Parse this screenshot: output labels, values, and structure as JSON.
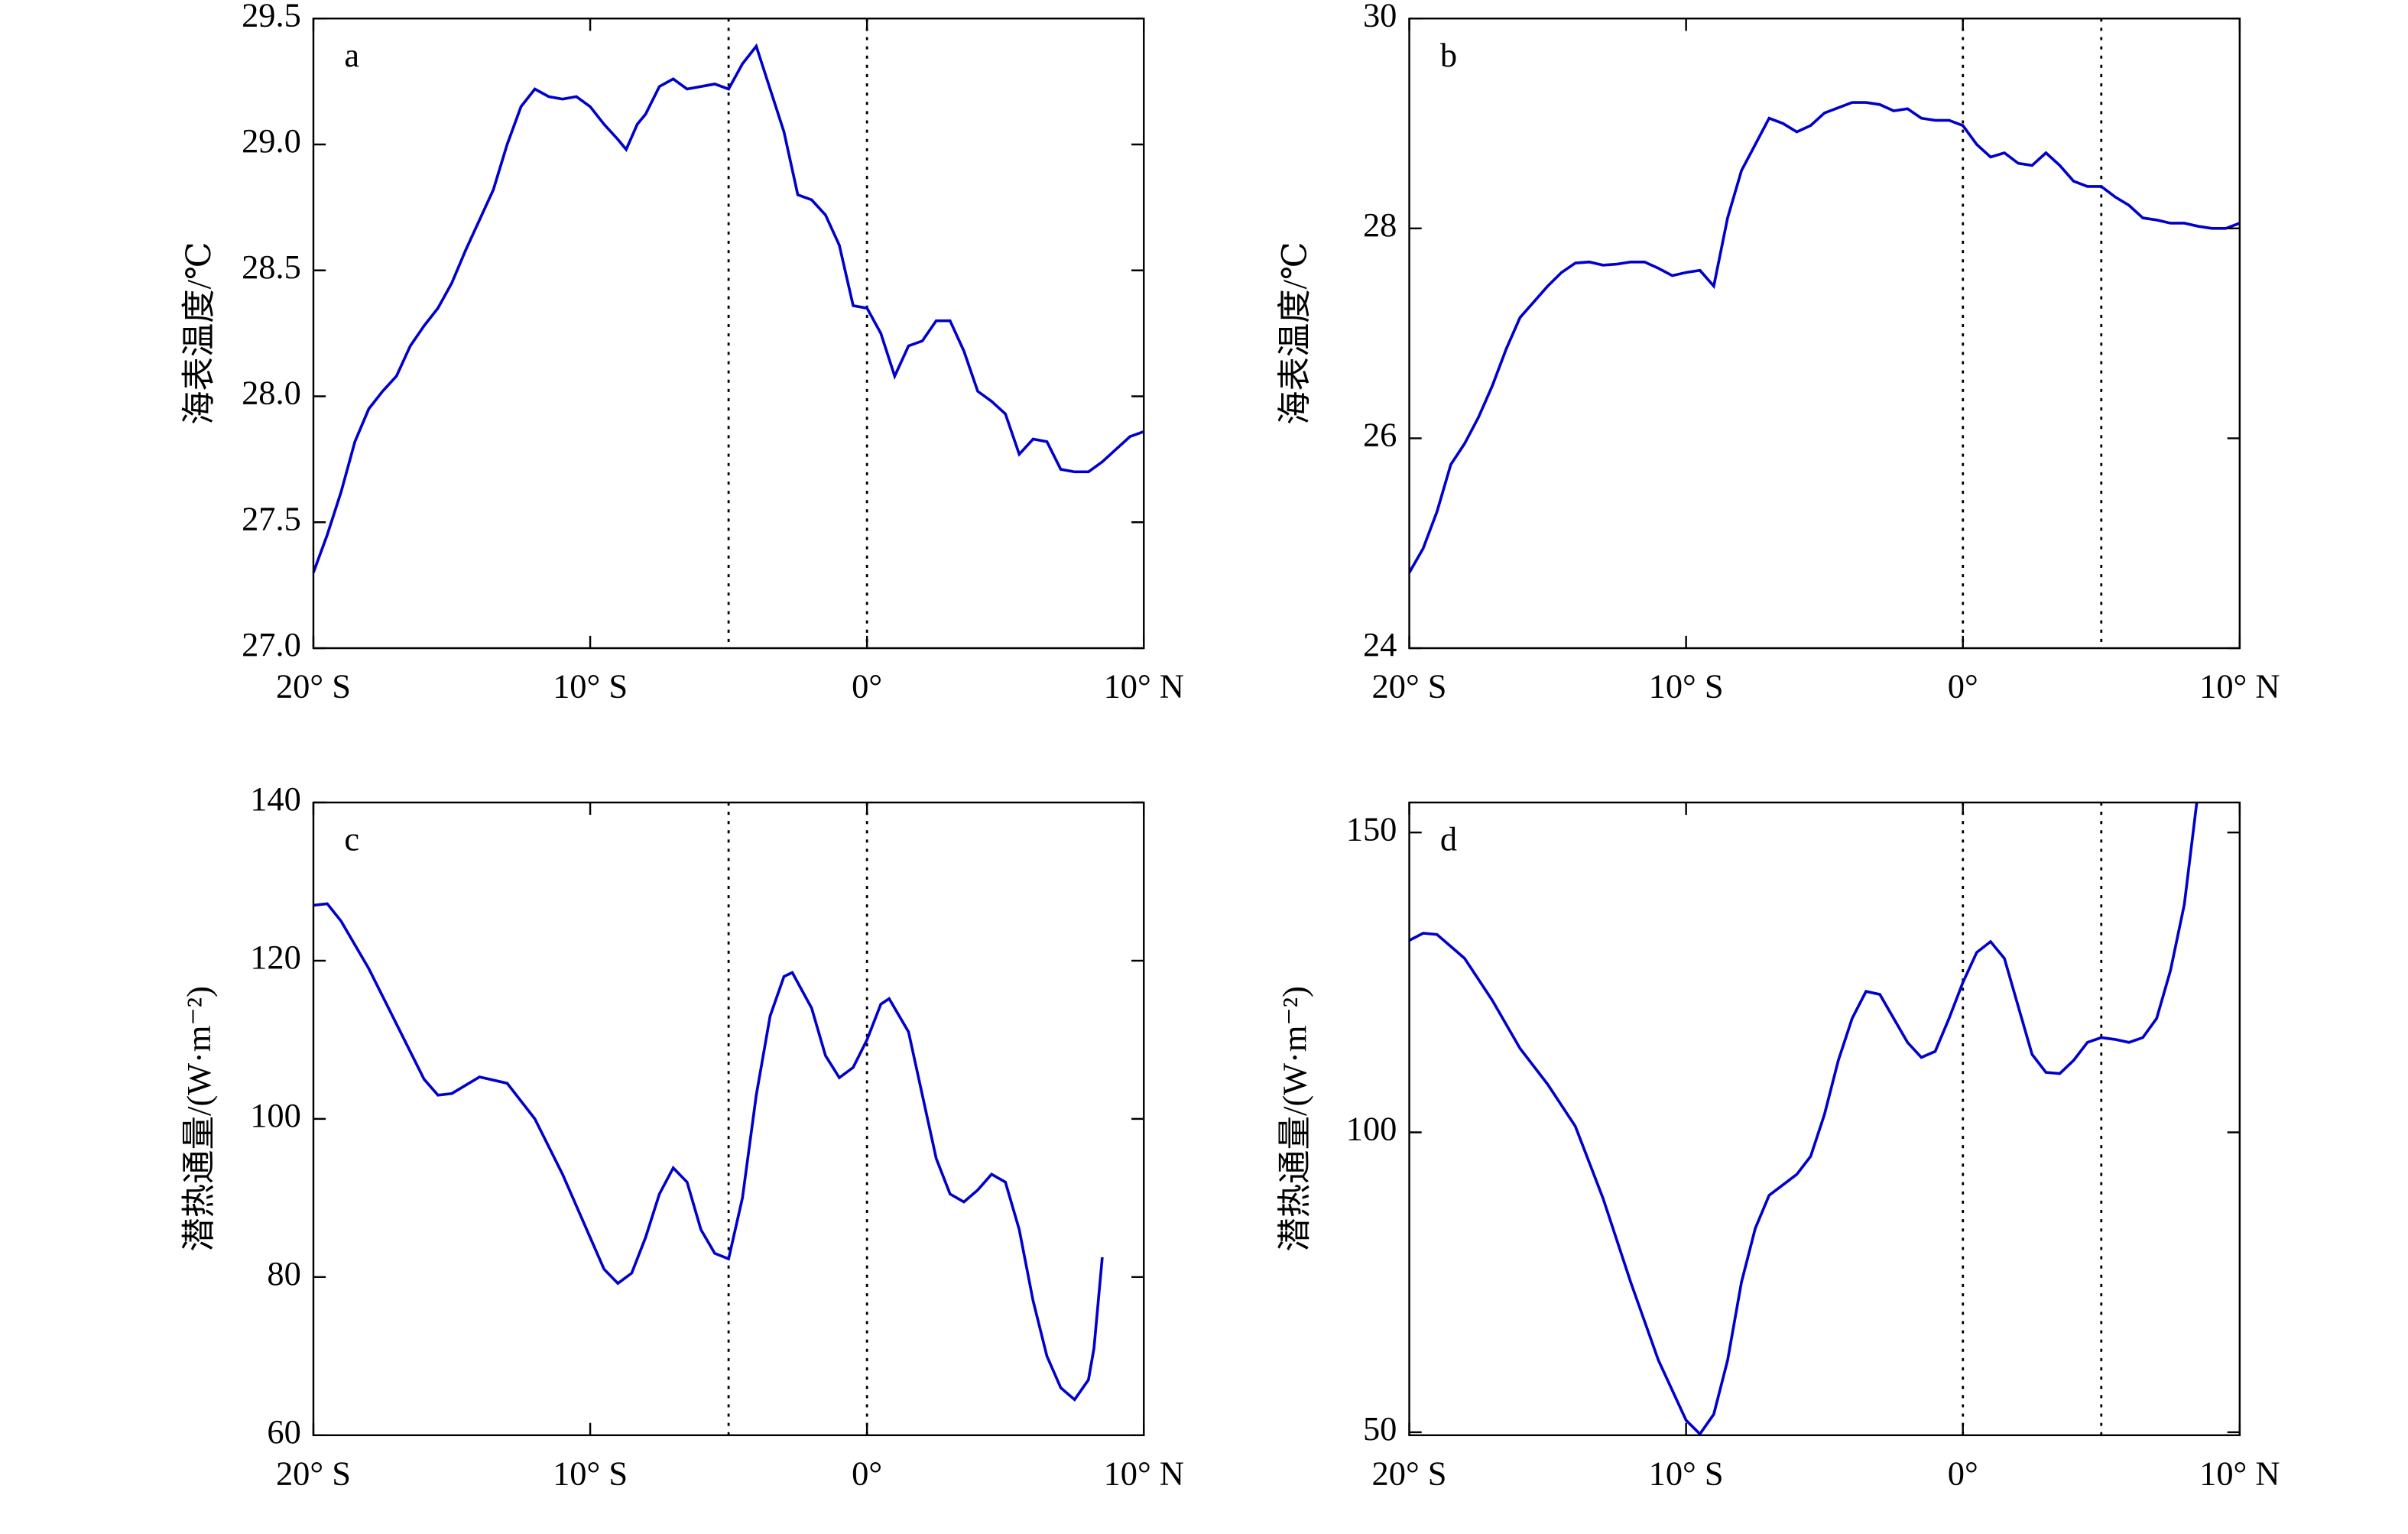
{
  "chart_data": [
    {
      "type": "line",
      "annotation": "a",
      "ylabel": "海表温度/℃",
      "color": "#0000cc",
      "xlim": [
        -20,
        10
      ],
      "xticks": [
        {
          "value": -20,
          "label": "20° S"
        },
        {
          "value": -10,
          "label": "10° S"
        },
        {
          "value": 0,
          "label": "0°"
        },
        {
          "value": 10,
          "label": "10° N"
        }
      ],
      "ylim": [
        27,
        29.5
      ],
      "yticks": [
        {
          "value": 27,
          "label": "27.0"
        },
        27.5,
        {
          "value": 28,
          "label": "28.0"
        },
        28.5,
        {
          "value": 29,
          "label": "29.0"
        },
        29.5
      ],
      "vlines": [
        -5,
        0
      ],
      "x": [
        -20,
        -19.5,
        -19,
        -18.5,
        -18,
        -17.5,
        -17,
        -16.5,
        -16,
        -15.5,
        -15,
        -14.5,
        -14,
        -13.5,
        -13,
        -12.5,
        -12,
        -11.5,
        -11,
        -10.5,
        -10,
        -9.5,
        -9,
        -8.7,
        -8.3,
        -8,
        -7.5,
        -7,
        -6.5,
        -6,
        -5.5,
        -5,
        -4.5,
        -4,
        -3.5,
        -3,
        -2.5,
        -2,
        -1.5,
        -1,
        -0.5,
        0,
        0.5,
        1,
        1.5,
        2,
        2.5,
        3,
        3.5,
        4,
        4.5,
        5,
        5.5,
        6,
        6.5,
        7,
        7.5,
        8,
        8.5,
        9,
        9.5,
        10
      ],
      "values": [
        27.3,
        27.45,
        27.62,
        27.82,
        27.95,
        28.02,
        28.08,
        28.2,
        28.28,
        28.35,
        28.45,
        28.58,
        28.7,
        28.82,
        29.0,
        29.15,
        29.22,
        29.19,
        29.18,
        29.19,
        29.15,
        29.08,
        29.02,
        28.98,
        29.08,
        29.12,
        29.23,
        29.26,
        29.22,
        29.23,
        29.24,
        29.22,
        29.32,
        29.39,
        29.22,
        29.05,
        28.8,
        28.78,
        28.72,
        28.6,
        28.36,
        28.35,
        28.25,
        28.08,
        28.2,
        28.22,
        28.3,
        28.3,
        28.18,
        28.02,
        27.98,
        27.93,
        27.77,
        27.83,
        27.82,
        27.71,
        27.7,
        27.7,
        27.74,
        27.79,
        27.84,
        27.86
      ]
    },
    {
      "type": "line",
      "annotation": "b",
      "ylabel": "海表温度/℃",
      "color": "#0000cc",
      "xlim": [
        -20,
        10
      ],
      "xticks": [
        {
          "value": -20,
          "label": "20° S"
        },
        {
          "value": -10,
          "label": "10° S"
        },
        {
          "value": 0,
          "label": "0°"
        },
        {
          "value": 10,
          "label": "10° N"
        }
      ],
      "ylim": [
        24,
        30
      ],
      "yticks": [
        24,
        26,
        28,
        30
      ],
      "vlines": [
        0,
        5
      ],
      "x": [
        -20,
        -19.5,
        -19,
        -18.5,
        -18,
        -17.5,
        -17,
        -16.5,
        -16,
        -15.5,
        -15,
        -14.5,
        -14,
        -13.5,
        -13,
        -12.5,
        -12,
        -11.5,
        -11,
        -10.5,
        -10,
        -9.5,
        -9,
        -8.5,
        -8,
        -7.5,
        -7,
        -6.5,
        -6,
        -5.5,
        -5,
        -4.5,
        -4,
        -3.5,
        -3,
        -2.5,
        -2,
        -1.5,
        -1,
        -0.5,
        0,
        0.5,
        1,
        1.5,
        2,
        2.5,
        3,
        3.5,
        4,
        4.5,
        5,
        5.5,
        6,
        6.5,
        7,
        7.5,
        8,
        8.5,
        9,
        9.5,
        10
      ],
      "values": [
        24.72,
        24.95,
        25.3,
        25.75,
        25.95,
        26.2,
        26.5,
        26.85,
        27.15,
        27.3,
        27.45,
        27.58,
        27.67,
        27.68,
        27.65,
        27.66,
        27.68,
        27.68,
        27.62,
        27.55,
        27.58,
        27.6,
        27.45,
        28.1,
        28.55,
        28.8,
        29.05,
        29.0,
        28.92,
        28.98,
        29.1,
        29.15,
        29.2,
        29.2,
        29.18,
        29.12,
        29.14,
        29.05,
        29.03,
        29.03,
        28.98,
        28.8,
        28.68,
        28.72,
        28.62,
        28.6,
        28.72,
        28.6,
        28.45,
        28.4,
        28.4,
        28.3,
        28.22,
        28.1,
        28.08,
        28.05,
        28.05,
        28.02,
        28.0,
        28.0,
        28.05
      ]
    },
    {
      "type": "line",
      "annotation": "c",
      "ylabel": "潜热通量/(W·m⁻²)",
      "color": "#0000cc",
      "xlim": [
        -20,
        10
      ],
      "xticks": [
        {
          "value": -20,
          "label": "20° S"
        },
        {
          "value": -10,
          "label": "10° S"
        },
        {
          "value": 0,
          "label": "0°"
        },
        {
          "value": 10,
          "label": "10° N"
        }
      ],
      "ylim": [
        60,
        140
      ],
      "yticks": [
        60,
        80,
        100,
        120,
        140
      ],
      "vlines": [
        -5,
        0
      ],
      "x": [
        -20,
        -19.5,
        -19,
        -18,
        -17,
        -16,
        -15.5,
        -15,
        -14,
        -13,
        -12,
        -11,
        -10,
        -9.5,
        -9,
        -8.5,
        -8,
        -7.5,
        -7,
        -6.5,
        -6,
        -5.5,
        -5,
        -4.5,
        -4,
        -3.5,
        -3,
        -2.7,
        -2,
        -1.5,
        -1,
        -0.5,
        0,
        0.5,
        0.8,
        1.5,
        2,
        2.5,
        3,
        3.5,
        4,
        4.5,
        5,
        5.5,
        6,
        6.5,
        7,
        7.5,
        8,
        8.2,
        8.5
      ],
      "values": [
        127,
        127.2,
        125,
        119,
        112,
        105,
        103,
        103.2,
        105.3,
        104.5,
        100,
        93,
        85,
        81,
        79.2,
        80.5,
        85,
        90.5,
        93.8,
        92,
        86,
        83,
        82.3,
        90,
        103,
        113,
        118,
        118.5,
        114,
        108,
        105.2,
        106.5,
        110,
        114.5,
        115.2,
        111,
        103,
        95,
        90.5,
        89.5,
        91,
        93,
        92,
        86,
        77,
        70,
        66,
        64.5,
        67,
        71,
        82.5
      ]
    },
    {
      "type": "line",
      "annotation": "d",
      "ylabel": "潜热通量/(W·m⁻²)",
      "color": "#0000cc",
      "xlim": [
        -20,
        10
      ],
      "xticks": [
        {
          "value": -20,
          "label": "20° S"
        },
        {
          "value": -10,
          "label": "10° S"
        },
        {
          "value": 0,
          "label": "0°"
        },
        {
          "value": 10,
          "label": "10° N"
        }
      ],
      "ylim": [
        49.5,
        155
      ],
      "yticks": [
        50,
        100,
        150
      ],
      "vlines": [
        0,
        5
      ],
      "x": [
        -20,
        -19.5,
        -19,
        -18,
        -17,
        -16,
        -15,
        -14,
        -13,
        -12,
        -11,
        -10,
        -9.5,
        -9,
        -8.5,
        -8,
        -7.5,
        -7,
        -6,
        -5.5,
        -5,
        -4.5,
        -4,
        -3.5,
        -3,
        -2.5,
        -2,
        -1.5,
        -1,
        -0.5,
        0,
        0.5,
        1,
        1.5,
        2,
        2.5,
        3,
        3.5,
        4,
        4.5,
        5,
        5.5,
        6,
        6.5,
        7,
        7.5,
        8,
        8.45
      ],
      "values": [
        132,
        133.2,
        133,
        129,
        122,
        114,
        108,
        101,
        89,
        75,
        62,
        52,
        49.7,
        53,
        62,
        75,
        84,
        89.5,
        93,
        96,
        103,
        112,
        119,
        123.5,
        123,
        119,
        115,
        112.5,
        113.5,
        119,
        125,
        130,
        131.8,
        129,
        121,
        113,
        110,
        109.8,
        112,
        115,
        115.8,
        115.5,
        115,
        115.8,
        119,
        127,
        138,
        155
      ]
    }
  ]
}
